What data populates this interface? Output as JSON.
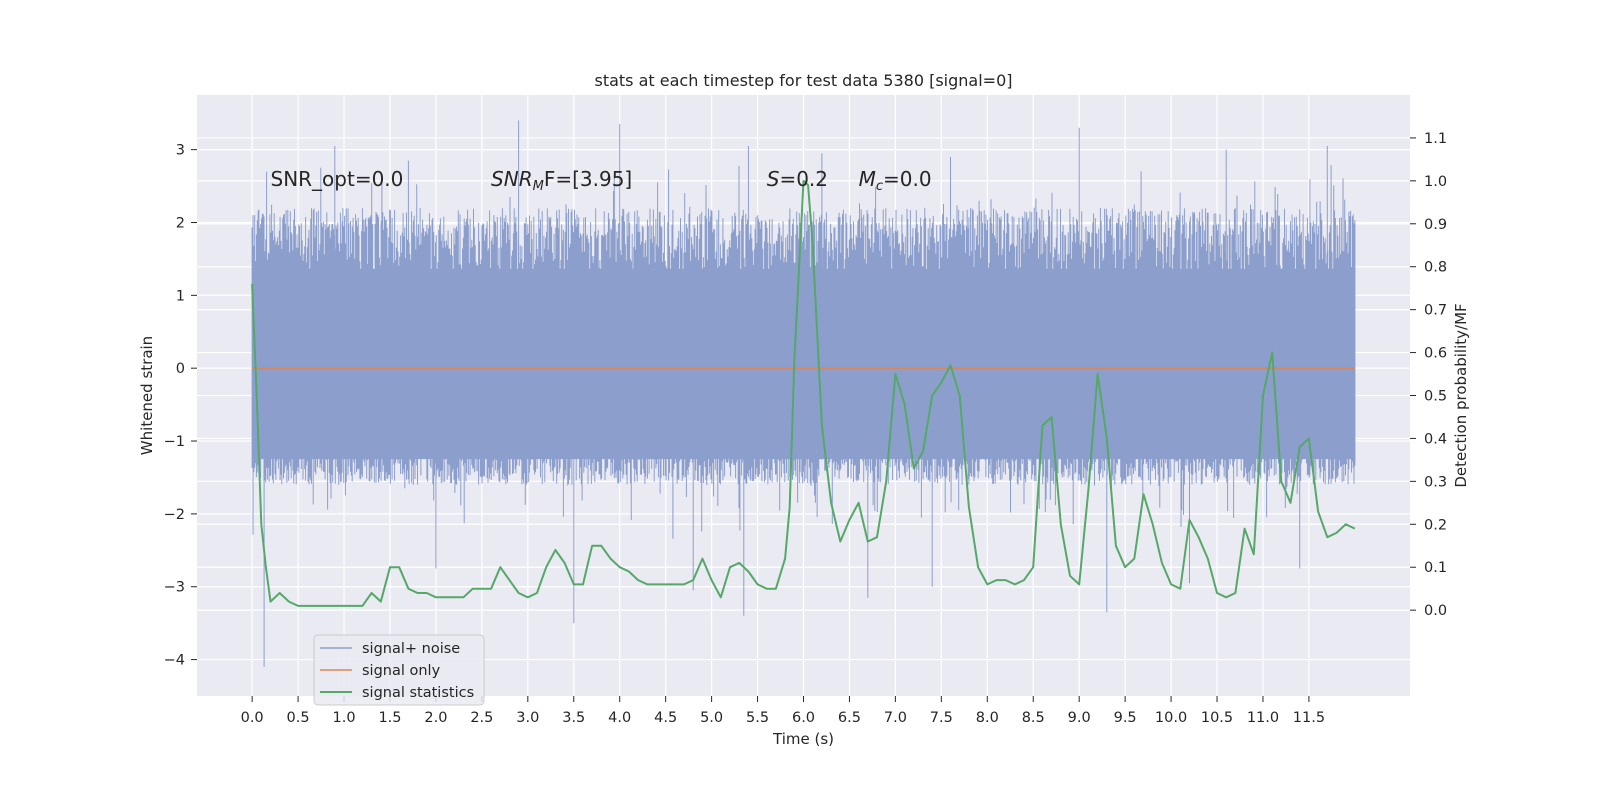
{
  "chart_data": {
    "type": "line",
    "title": "stats at each timestep for test data 5380 [signal=0]",
    "xlabel": "Time (s)",
    "ylabel": "Whitened strain",
    "ylabel_right": "Detection probability/MF",
    "xlim": [
      -0.6,
      12.6
    ],
    "ylim": [
      -4.5,
      3.75
    ],
    "ylim_right": [
      -0.2,
      1.2
    ],
    "x_ticks": [
      "0.0",
      "0.5",
      "1.0",
      "1.5",
      "2.0",
      "2.5",
      "3.0",
      "3.5",
      "4.0",
      "4.5",
      "5.0",
      "5.5",
      "6.0",
      "6.5",
      "7.0",
      "7.5",
      "8.0",
      "8.5",
      "9.0",
      "9.5",
      "10.0",
      "10.5",
      "11.0",
      "11.5"
    ],
    "y_ticks": [
      "3",
      "2",
      "1",
      "0",
      "−1",
      "−2",
      "−3",
      "−4"
    ],
    "y_ticks_right": [
      "1.1",
      "1.0",
      "0.9",
      "0.8",
      "0.7",
      "0.6",
      "0.5",
      "0.4",
      "0.3",
      "0.2",
      "0.1",
      "0.0"
    ],
    "grid": true,
    "legend_position": "lower-left",
    "annotations": [
      {
        "text": "SNR_opt=0.0",
        "x": 0.2,
        "y": 2.6
      },
      {
        "text": "SNR",
        "sub": "M",
        "tail": "F=[3.95]",
        "italic": true,
        "x": 2.6,
        "y": 2.6
      },
      {
        "text": "S",
        "tail": "=0.2",
        "italic": true,
        "x": 5.6,
        "y": 2.6
      },
      {
        "text": "M",
        "sub": "c",
        "tail": "=0.0",
        "italic": true,
        "x": 6.6,
        "y": 2.6
      }
    ],
    "series": [
      {
        "name": "signal+ noise",
        "axis": "left",
        "color": "#8c9fcc",
        "kind": "noise",
        "x_range": [
          0.0,
          12.0
        ],
        "envelope_upper": 2.2,
        "envelope_lower": -1.6,
        "peaks_upper": [
          [
            0.9,
            3.05
          ],
          [
            2.9,
            3.4
          ],
          [
            4.0,
            3.35
          ],
          [
            5.4,
            3.05
          ],
          [
            9.0,
            3.3
          ],
          [
            11.7,
            3.05
          ],
          [
            6.2,
            2.95
          ],
          [
            1.7,
            2.85
          ],
          [
            7.6,
            2.9
          ],
          [
            10.6,
            3.0
          ]
        ],
        "peaks_lower": [
          [
            0.13,
            -4.1
          ],
          [
            3.5,
            -3.5
          ],
          [
            5.35,
            -3.4
          ],
          [
            6.7,
            -3.15
          ],
          [
            9.3,
            -3.35
          ],
          [
            7.4,
            -3.0
          ],
          [
            2.0,
            -2.75
          ],
          [
            11.4,
            -2.75
          ],
          [
            4.8,
            -3.05
          ],
          [
            10.2,
            -2.95
          ]
        ]
      },
      {
        "name": "signal only",
        "axis": "left",
        "color": "#dd8452",
        "x": [
          0.0,
          12.0
        ],
        "y": [
          0.0,
          0.0
        ]
      },
      {
        "name": "signal statistics",
        "axis": "right",
        "color": "#55a868",
        "x": [
          0.0,
          0.05,
          0.1,
          0.15,
          0.2,
          0.3,
          0.4,
          0.5,
          0.6,
          0.7,
          0.8,
          0.9,
          1.0,
          1.1,
          1.2,
          1.3,
          1.4,
          1.5,
          1.6,
          1.7,
          1.8,
          1.9,
          2.0,
          2.1,
          2.2,
          2.3,
          2.4,
          2.5,
          2.6,
          2.7,
          2.8,
          2.9,
          3.0,
          3.1,
          3.2,
          3.3,
          3.4,
          3.5,
          3.6,
          3.7,
          3.8,
          3.9,
          4.0,
          4.1,
          4.2,
          4.3,
          4.4,
          4.5,
          4.6,
          4.7,
          4.8,
          4.9,
          5.0,
          5.1,
          5.2,
          5.3,
          5.4,
          5.5,
          5.6,
          5.7,
          5.8,
          5.85,
          5.9,
          6.0,
          6.05,
          6.1,
          6.2,
          6.3,
          6.4,
          6.5,
          6.6,
          6.7,
          6.8,
          6.9,
          7.0,
          7.1,
          7.2,
          7.3,
          7.4,
          7.5,
          7.6,
          7.7,
          7.8,
          7.9,
          8.0,
          8.1,
          8.2,
          8.3,
          8.4,
          8.5,
          8.6,
          8.7,
          8.8,
          8.9,
          9.0,
          9.1,
          9.2,
          9.3,
          9.4,
          9.5,
          9.6,
          9.7,
          9.8,
          9.9,
          10.0,
          10.1,
          10.2,
          10.3,
          10.4,
          10.5,
          10.6,
          10.7,
          10.8,
          10.9,
          11.0,
          11.1,
          11.2,
          11.3,
          11.4,
          11.5,
          11.6,
          11.7,
          11.8,
          11.9,
          12.0
        ],
        "y": [
          0.76,
          0.5,
          0.2,
          0.1,
          0.02,
          0.04,
          0.02,
          0.01,
          0.01,
          0.01,
          0.01,
          0.01,
          0.01,
          0.01,
          0.01,
          0.04,
          0.02,
          0.1,
          0.1,
          0.05,
          0.04,
          0.04,
          0.03,
          0.03,
          0.03,
          0.03,
          0.05,
          0.05,
          0.05,
          0.1,
          0.07,
          0.04,
          0.03,
          0.04,
          0.1,
          0.14,
          0.11,
          0.06,
          0.06,
          0.15,
          0.15,
          0.12,
          0.1,
          0.09,
          0.07,
          0.06,
          0.06,
          0.06,
          0.06,
          0.06,
          0.07,
          0.12,
          0.07,
          0.03,
          0.1,
          0.11,
          0.09,
          0.06,
          0.05,
          0.05,
          0.12,
          0.24,
          0.58,
          1.0,
          0.99,
          0.85,
          0.43,
          0.25,
          0.16,
          0.21,
          0.25,
          0.16,
          0.17,
          0.3,
          0.55,
          0.48,
          0.33,
          0.37,
          0.5,
          0.53,
          0.57,
          0.5,
          0.24,
          0.1,
          0.06,
          0.07,
          0.07,
          0.06,
          0.07,
          0.1,
          0.43,
          0.45,
          0.2,
          0.08,
          0.06,
          0.28,
          0.55,
          0.4,
          0.15,
          0.1,
          0.12,
          0.27,
          0.2,
          0.11,
          0.06,
          0.05,
          0.21,
          0.17,
          0.12,
          0.04,
          0.03,
          0.04,
          0.19,
          0.13,
          0.5,
          0.6,
          0.3,
          0.25,
          0.38,
          0.4,
          0.23,
          0.17,
          0.18,
          0.2,
          0.19
        ]
      }
    ]
  }
}
